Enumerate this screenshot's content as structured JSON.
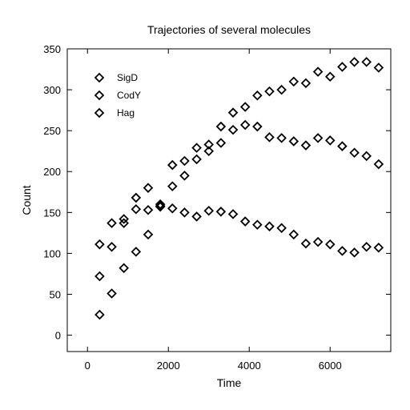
{
  "chart_data": {
    "type": "scatter",
    "title": "Trajectories of several molecules",
    "xlabel": "Time",
    "ylabel": "Count",
    "xlim": [
      -500,
      7500
    ],
    "ylim": [
      -20,
      350
    ],
    "xticks": [
      0,
      2000,
      4000,
      6000
    ],
    "yticks": [
      0,
      50,
      100,
      150,
      200,
      250,
      300,
      350
    ],
    "grid": false,
    "legend_position": "top-left",
    "marker": "diamond",
    "x": [
      300,
      600,
      900,
      1200,
      1500,
      1800,
      2100,
      2400,
      2700,
      3000,
      3300,
      3600,
      3900,
      4200,
      4500,
      4800,
      5100,
      5400,
      5700,
      6000,
      6300,
      6600,
      6900,
      7200
    ],
    "series": [
      {
        "name": "SigD",
        "values": [
          25,
          51,
          82,
          102,
          123,
          160,
          208,
          213,
          229,
          233,
          255,
          272,
          279,
          293,
          298,
          300,
          310,
          308,
          322,
          316,
          328,
          334,
          334,
          327
        ]
      },
      {
        "name": "CodY",
        "values": [
          72,
          108,
          137,
          154,
          153,
          158,
          182,
          195,
          215,
          225,
          235,
          251,
          257,
          255,
          242,
          241,
          237,
          232,
          241,
          238,
          231,
          223,
          219,
          209
        ]
      },
      {
        "name": "Hag",
        "values": [
          111,
          137,
          142,
          168,
          180,
          157,
          155,
          150,
          145,
          152,
          151,
          148,
          139,
          135,
          133,
          131,
          123,
          112,
          114,
          111,
          103,
          101,
          108,
          107
        ]
      }
    ]
  }
}
